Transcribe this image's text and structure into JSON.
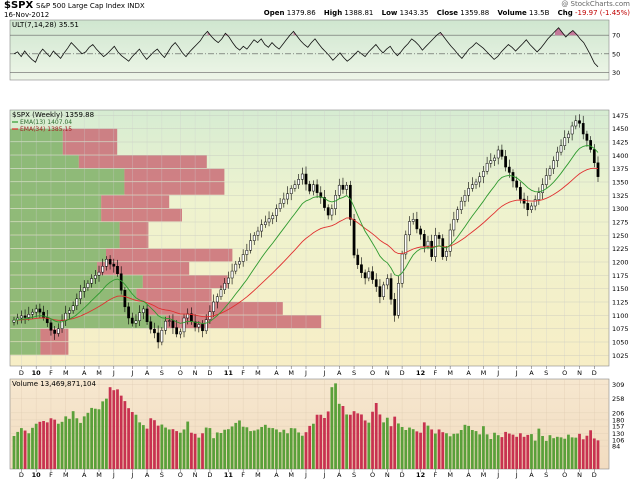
{
  "header": {
    "symbol": "$SPX",
    "name": "S&P 500 Large Cap Index  INDX",
    "date": "16-Nov-2012",
    "copyright": "@ StockCharts.com",
    "open_label": "Open",
    "open": "1379.86",
    "high_label": "High",
    "high": "1388.81",
    "low_label": "Low",
    "low": "1343.35",
    "close_label": "Close",
    "close": "1359.88",
    "volume_label": "Volume",
    "volume": "13.5B",
    "chg_label": "Chg",
    "chg": "-19.97 (-1.45%)"
  },
  "colors": {
    "up": "#4a8f2e",
    "down": "#c8304a",
    "ema13": "#2f9a2f",
    "ema34": "#e03030",
    "vbp_green": "#7fb069",
    "vbp_red": "#c86470",
    "vol_up": "#5aa03a",
    "vol_down": "#c83250"
  },
  "chart_data": [
    {
      "type": "line",
      "title": "ULT(7,14,28) 35.51",
      "ylim": [
        24,
        82
      ],
      "yticks": [
        30,
        50,
        70
      ],
      "reference_lines": [
        30,
        50,
        70
      ],
      "values": [
        50,
        52,
        47,
        53,
        48,
        44,
        41,
        50,
        55,
        51,
        47,
        53,
        49,
        45,
        51,
        56,
        62,
        58,
        54,
        50,
        52,
        57,
        60,
        55,
        51,
        47,
        50,
        54,
        58,
        52,
        48,
        45,
        42,
        47,
        51,
        55,
        49,
        44,
        48,
        52,
        55,
        50,
        46,
        52,
        58,
        62,
        57,
        51,
        47,
        52,
        56,
        60,
        64,
        70,
        74,
        69,
        65,
        62,
        66,
        72,
        68,
        62,
        57,
        54,
        58,
        55,
        60,
        65,
        62,
        66,
        60,
        57,
        62,
        58,
        55,
        60,
        65,
        70,
        74,
        69,
        64,
        60,
        57,
        62,
        66,
        61,
        56,
        52,
        48,
        43,
        47,
        51,
        46,
        42,
        45,
        49,
        53,
        50,
        47,
        52,
        56,
        60,
        55,
        51,
        55,
        58,
        52,
        48,
        52,
        57,
        61,
        66,
        63,
        59,
        54,
        58,
        62,
        66,
        70,
        73,
        68,
        63,
        58,
        54,
        49,
        45,
        50,
        55,
        58,
        62,
        59,
        56,
        52,
        48,
        44,
        47,
        52,
        56,
        60,
        57,
        53,
        57,
        61,
        65,
        60,
        56,
        52,
        56,
        61,
        66,
        70,
        74,
        78,
        73,
        68,
        72,
        75,
        71,
        66,
        62,
        55,
        48,
        40,
        36
      ],
      "last_value": 35.51
    },
    {
      "type": "candlestick",
      "title": "$SPX (Weekly) 1359.88",
      "series": [
        {
          "name": "EMA(13) 1407.04",
          "last": 1407.04
        },
        {
          "name": "EMA(34) 1385.15",
          "last": 1385.15
        }
      ],
      "ylim": [
        1005,
        1485
      ],
      "yticks": [
        1025,
        1050,
        1075,
        1100,
        1125,
        1150,
        1175,
        1200,
        1225,
        1250,
        1275,
        1300,
        1325,
        1350,
        1375,
        1400,
        1425,
        1450,
        1475
      ],
      "xlabels": [
        {
          "label": "D",
          "week": 2
        },
        {
          "label": "10",
          "week": 6,
          "bold": true
        },
        {
          "label": "F",
          "week": 10
        },
        {
          "label": "M",
          "week": 14
        },
        {
          "label": "A",
          "week": 19
        },
        {
          "label": "M",
          "week": 23
        },
        {
          "label": "J",
          "week": 27
        },
        {
          "label": "J",
          "week": 32
        },
        {
          "label": "A",
          "week": 36
        },
        {
          "label": "S",
          "week": 40
        },
        {
          "label": "O",
          "week": 45
        },
        {
          "label": "N",
          "week": 49
        },
        {
          "label": "D",
          "week": 53
        },
        {
          "label": "11",
          "week": 58,
          "bold": true
        },
        {
          "label": "F",
          "week": 62
        },
        {
          "label": "M",
          "week": 66
        },
        {
          "label": "A",
          "week": 71
        },
        {
          "label": "M",
          "week": 75
        },
        {
          "label": "J",
          "week": 79
        },
        {
          "label": "J",
          "week": 84
        },
        {
          "label": "A",
          "week": 88
        },
        {
          "label": "S",
          "week": 92
        },
        {
          "label": "O",
          "week": 97
        },
        {
          "label": "N",
          "week": 101
        },
        {
          "label": "D",
          "week": 105
        },
        {
          "label": "12",
          "week": 110,
          "bold": true
        },
        {
          "label": "F",
          "week": 114
        },
        {
          "label": "M",
          "week": 118
        },
        {
          "label": "A",
          "week": 123
        },
        {
          "label": "M",
          "week": 127
        },
        {
          "label": "J",
          "week": 131
        },
        {
          "label": "J",
          "week": 136
        },
        {
          "label": "A",
          "week": 140
        },
        {
          "label": "S",
          "week": 144
        },
        {
          "label": "O",
          "week": 149
        },
        {
          "label": "N",
          "week": 153
        },
        {
          "label": "D",
          "week": 157
        }
      ],
      "weeks": 159,
      "closes": [
        1091,
        1095,
        1099,
        1096,
        1102,
        1106,
        1112,
        1106,
        1096,
        1086,
        1072,
        1066,
        1075,
        1090,
        1104,
        1109,
        1118,
        1131,
        1145,
        1152,
        1160,
        1169,
        1175,
        1181,
        1192,
        1205,
        1196,
        1192,
        1178,
        1147,
        1116,
        1095,
        1085,
        1090,
        1105,
        1112,
        1088,
        1074,
        1067,
        1050,
        1072,
        1089,
        1090,
        1077,
        1065,
        1069,
        1095,
        1103,
        1088,
        1078,
        1083,
        1071,
        1092,
        1107,
        1125,
        1135,
        1148,
        1160,
        1170,
        1183,
        1196,
        1201,
        1214,
        1222,
        1240,
        1250,
        1258,
        1270,
        1275,
        1281,
        1287,
        1300,
        1310,
        1318,
        1328,
        1338,
        1345,
        1355,
        1365,
        1346,
        1333,
        1345,
        1330,
        1321,
        1302,
        1288,
        1300,
        1325,
        1344,
        1336,
        1344,
        1280,
        1213,
        1195,
        1180,
        1170,
        1182,
        1167,
        1154,
        1135,
        1157,
        1169,
        1130,
        1100,
        1160,
        1215,
        1251,
        1276,
        1280,
        1262,
        1252,
        1230,
        1239,
        1210,
        1250,
        1244,
        1210,
        1220,
        1260,
        1280,
        1298,
        1314,
        1325,
        1338,
        1345,
        1350,
        1360,
        1370,
        1385,
        1390,
        1395,
        1410,
        1398,
        1378,
        1368,
        1352,
        1340,
        1318,
        1310,
        1298,
        1305,
        1317,
        1330,
        1345,
        1362,
        1375,
        1390,
        1406,
        1418,
        1433,
        1440,
        1455,
        1465,
        1460,
        1440,
        1428,
        1411,
        1386,
        1360
      ]
    },
    {
      "type": "bar",
      "title": "Volume 13,469,871,104",
      "ylim": [
        0,
        330
      ],
      "yticks": [
        84,
        106,
        130,
        157,
        180,
        206,
        258,
        309
      ],
      "ytick_labels": [
        "84",
        "106",
        "130",
        "157",
        "180",
        "206",
        "258",
        "309"
      ],
      "values": [
        121,
        136,
        150,
        141,
        131,
        151,
        166,
        173,
        176,
        171,
        186,
        181,
        166,
        173,
        193,
        184,
        212,
        186,
        169,
        193,
        206,
        224,
        221,
        219,
        248,
        258,
        300,
        289,
        292,
        269,
        249,
        223,
        209,
        199,
        171,
        161,
        148,
        186,
        179,
        159,
        163,
        152,
        145,
        146,
        139,
        133,
        145,
        174,
        133,
        129,
        115,
        131,
        152,
        150,
        113,
        134,
        132,
        144,
        146,
        156,
        169,
        178,
        155,
        153,
        139,
        141,
        145,
        154,
        162,
        151,
        150,
        145,
        135,
        144,
        131,
        150,
        149,
        134,
        122,
        135,
        158,
        166,
        199,
        199,
        187,
        211,
        300,
        314,
        239,
        231,
        200,
        199,
        212,
        204,
        200,
        178,
        170,
        210,
        242,
        200,
        171,
        188,
        157,
        192,
        167,
        154,
        143,
        152,
        146,
        138,
        133,
        171,
        159,
        145,
        130,
        145,
        135,
        131,
        120,
        129,
        130,
        143,
        162,
        158,
        143,
        139,
        127,
        157,
        127,
        110,
        133,
        124,
        117,
        136,
        130,
        126,
        118,
        131,
        118,
        125,
        128,
        104,
        148,
        121,
        103,
        124,
        113,
        118,
        116,
        111,
        126,
        116,
        115,
        129,
        109,
        122,
        142,
        112,
        105
      ],
      "up": [
        1,
        1,
        1,
        0,
        1,
        1,
        1,
        0,
        0,
        0,
        0,
        0,
        1,
        1,
        1,
        1,
        1,
        1,
        1,
        1,
        1,
        1,
        1,
        1,
        1,
        1,
        0,
        0,
        0,
        0,
        0,
        0,
        0,
        1,
        1,
        1,
        0,
        0,
        0,
        0,
        1,
        1,
        1,
        0,
        0,
        1,
        1,
        1,
        0,
        0,
        1,
        0,
        1,
        1,
        1,
        1,
        1,
        1,
        1,
        1,
        1,
        1,
        1,
        1,
        1,
        1,
        1,
        1,
        1,
        1,
        1,
        1,
        1,
        1,
        1,
        1,
        1,
        1,
        1,
        0,
        0,
        1,
        0,
        0,
        0,
        0,
        1,
        1,
        1,
        0,
        1,
        0,
        0,
        0,
        0,
        0,
        1,
        0,
        0,
        0,
        1,
        1,
        0,
        0,
        1,
        1,
        1,
        1,
        1,
        0,
        0,
        0,
        1,
        0,
        1,
        0,
        0,
        1,
        1,
        1,
        1,
        1,
        1,
        1,
        1,
        1,
        1,
        1,
        1,
        1,
        1,
        1,
        0,
        0,
        0,
        0,
        0,
        0,
        0,
        0,
        1,
        1,
        1,
        1,
        1,
        1,
        1,
        1,
        1,
        1,
        1,
        1,
        1,
        0,
        0,
        0,
        0,
        0,
        0
      ]
    }
  ],
  "volume_by_price": [
    {
      "bottom": 1025,
      "top": 1050,
      "green": 0.38,
      "red": 0.35
    },
    {
      "bottom": 1050,
      "top": 1075,
      "green": 0.38,
      "red": 0.35
    },
    {
      "bottom": 1075,
      "top": 1100,
      "green": 1.95,
      "red": 1.94
    },
    {
      "bottom": 1100,
      "top": 1125,
      "green": 1.72,
      "red": 1.69
    },
    {
      "bottom": 1125,
      "top": 1150,
      "green": 1.58,
      "red": 0.94
    },
    {
      "bottom": 1150,
      "top": 1175,
      "green": 1.66,
      "red": 1.06
    },
    {
      "bottom": 1175,
      "top": 1200,
      "green": 1.09,
      "red": 1.15
    },
    {
      "bottom": 1200,
      "top": 1225,
      "green": 1.2,
      "red": 1.58
    },
    {
      "bottom": 1225,
      "top": 1250,
      "green": 1.37,
      "red": 0.36
    },
    {
      "bottom": 1250,
      "top": 1275,
      "green": 1.37,
      "red": 0.36
    },
    {
      "bottom": 1275,
      "top": 1300,
      "green": 1.14,
      "red": 1.01
    },
    {
      "bottom": 1300,
      "top": 1325,
      "green": 1.14,
      "red": 0.85
    },
    {
      "bottom": 1325,
      "top": 1350,
      "green": 1.43,
      "red": 1.25
    },
    {
      "bottom": 1350,
      "top": 1375,
      "green": 1.43,
      "red": 1.25
    },
    {
      "bottom": 1375,
      "top": 1400,
      "green": 0.86,
      "red": 1.6
    },
    {
      "bottom": 1400,
      "top": 1425,
      "green": 0.66,
      "red": 0.68
    },
    {
      "bottom": 1425,
      "top": 1450,
      "green": 0.66,
      "red": 0.68
    }
  ]
}
